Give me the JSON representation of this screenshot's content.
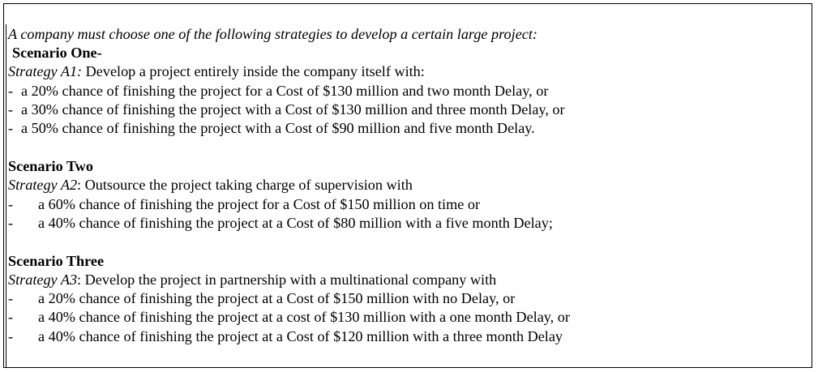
{
  "intro": "A company must choose one of the following strategies to develop a certain large project:",
  "scenarios": [
    {
      "title": "Scenario One-",
      "strategy_name": "Strategy A1:",
      "strategy_desc": " Develop a project entirely inside the company itself with:",
      "options": [
        "a 20% chance of finishing the project for a Cost of $130 million and two month Delay, or",
        "a 30% chance of finishing the project with a Cost of $130 million and three month Delay, or",
        "a 50% chance of finishing the project with a Cost of $90 million and five month Delay."
      ]
    },
    {
      "title": "Scenario Two",
      "strategy_name": "Strategy A2",
      "strategy_desc": ":  Outsource the project taking charge of supervision with",
      "options": [
        "a 60% chance of finishing the project for a Cost of $150 million on time or",
        "a 40% chance of finishing the project at a Cost of $80 million with a five month Delay;"
      ]
    },
    {
      "title": "Scenario Three",
      "strategy_name": "Strategy A3",
      "strategy_desc": ":  Develop the project in partnership with a multinational company with",
      "options": [
        "a 20% chance of finishing the project at a Cost of $150 million with no Delay, or",
        "a 40% chance of finishing the project at a cost of $130 million with a one month Delay, or",
        "a 40% chance of finishing the project at a Cost of $120 million with a three month Delay"
      ]
    }
  ],
  "bullet_char": "-"
}
